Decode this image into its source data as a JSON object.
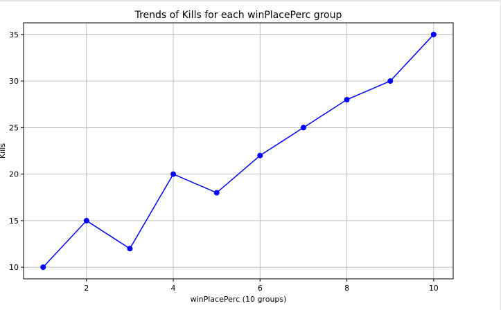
{
  "chart_data": {
    "type": "line",
    "title": "Trends of Kills for each winPlacePerc group",
    "xlabel": "winPlacePerc (10 groups)",
    "ylabel": "Kills",
    "x": [
      1,
      2,
      3,
      4,
      5,
      6,
      7,
      8,
      9,
      10
    ],
    "values": [
      10,
      15,
      12,
      20,
      18,
      22,
      25,
      28,
      30,
      35
    ],
    "xlim": [
      0.55,
      10.45
    ],
    "ylim": [
      8.75,
      36.25
    ],
    "xticks": [
      2,
      4,
      6,
      8,
      10
    ],
    "yticks": [
      10,
      15,
      20,
      25,
      30,
      35
    ],
    "grid": true,
    "line_color": "#0000ff",
    "marker": "circle"
  }
}
